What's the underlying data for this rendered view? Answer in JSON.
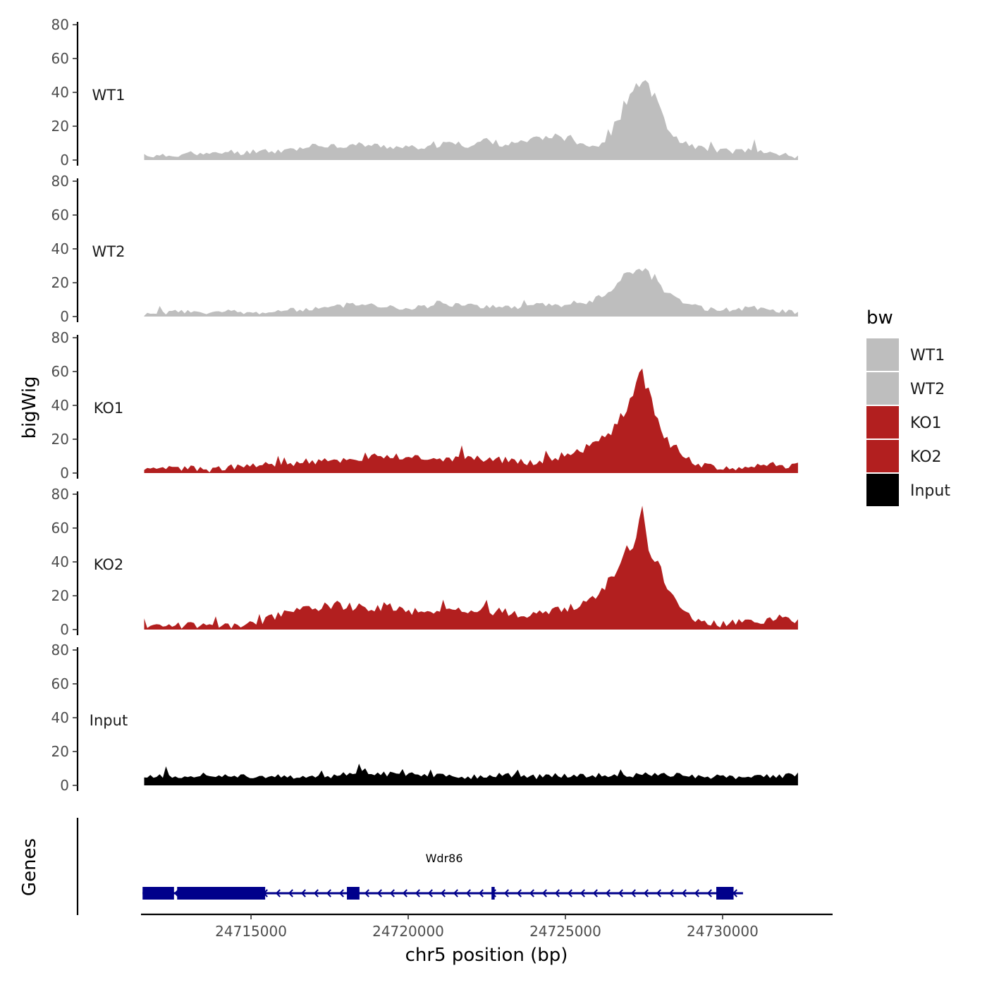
{
  "chart_data": {
    "type": "area",
    "ylabel": "bigWig",
    "genes_label": "Genes",
    "xlabel": "chr5 position (bp)",
    "xlim": [
      24711500,
      24733500
    ],
    "xdata_range": [
      24711600,
      24732400
    ],
    "xticks": [
      24715000,
      24720000,
      24725000,
      24730000
    ],
    "xtick_labels": [
      "24715000",
      "24720000",
      "24725000",
      "24730000"
    ],
    "ylim": [
      0,
      80
    ],
    "yticks": [
      0,
      20,
      40,
      60,
      80
    ],
    "ytick_labels": [
      "0",
      "20",
      "40",
      "60",
      "80"
    ],
    "colors": {
      "WT1": "#bebebe",
      "WT2": "#bebebe",
      "KO1": "#b21f1f",
      "KO2": "#b21f1f",
      "Input": "#000000",
      "gene": "#00008b"
    },
    "tracks": [
      {
        "name": "WT1",
        "color": "#bebebe",
        "anchors": [
          [
            0,
            3
          ],
          [
            0.02,
            2
          ],
          [
            0.05,
            3
          ],
          [
            0.08,
            4
          ],
          [
            0.1,
            3
          ],
          [
            0.13,
            5
          ],
          [
            0.15,
            4
          ],
          [
            0.18,
            6
          ],
          [
            0.2,
            5
          ],
          [
            0.24,
            7
          ],
          [
            0.28,
            9
          ],
          [
            0.3,
            8
          ],
          [
            0.33,
            9
          ],
          [
            0.37,
            8
          ],
          [
            0.4,
            7
          ],
          [
            0.44,
            8
          ],
          [
            0.47,
            10
          ],
          [
            0.5,
            8
          ],
          [
            0.52,
            12
          ],
          [
            0.55,
            9
          ],
          [
            0.58,
            10
          ],
          [
            0.62,
            14
          ],
          [
            0.65,
            12
          ],
          [
            0.68,
            9
          ],
          [
            0.69,
            8
          ],
          [
            0.7,
            10
          ],
          [
            0.71,
            13
          ],
          [
            0.72,
            18
          ],
          [
            0.73,
            26
          ],
          [
            0.74,
            35
          ],
          [
            0.75,
            42
          ],
          [
            0.755,
            48
          ],
          [
            0.76,
            44
          ],
          [
            0.765,
            50
          ],
          [
            0.77,
            46
          ],
          [
            0.775,
            40
          ],
          [
            0.78,
            38
          ],
          [
            0.785,
            33
          ],
          [
            0.79,
            28
          ],
          [
            0.8,
            20
          ],
          [
            0.81,
            15
          ],
          [
            0.82,
            11
          ],
          [
            0.84,
            8
          ],
          [
            0.87,
            6
          ],
          [
            0.9,
            5
          ],
          [
            0.93,
            6
          ],
          [
            0.96,
            4
          ],
          [
            1,
            2
          ]
        ],
        "seed": 11,
        "noise": 2.6
      },
      {
        "name": "WT2",
        "color": "#bebebe",
        "anchors": [
          [
            0,
            1
          ],
          [
            0.03,
            2
          ],
          [
            0.06,
            3
          ],
          [
            0.1,
            2
          ],
          [
            0.13,
            3
          ],
          [
            0.17,
            2
          ],
          [
            0.2,
            3
          ],
          [
            0.24,
            4
          ],
          [
            0.28,
            5
          ],
          [
            0.3,
            6
          ],
          [
            0.33,
            7
          ],
          [
            0.37,
            6
          ],
          [
            0.4,
            5
          ],
          [
            0.44,
            6
          ],
          [
            0.48,
            7
          ],
          [
            0.52,
            6
          ],
          [
            0.55,
            5
          ],
          [
            0.58,
            6
          ],
          [
            0.62,
            7
          ],
          [
            0.65,
            6
          ],
          [
            0.68,
            8
          ],
          [
            0.7,
            12
          ],
          [
            0.72,
            18
          ],
          [
            0.73,
            24
          ],
          [
            0.74,
            27
          ],
          [
            0.75,
            25
          ],
          [
            0.76,
            29
          ],
          [
            0.77,
            26
          ],
          [
            0.78,
            22
          ],
          [
            0.79,
            18
          ],
          [
            0.8,
            14
          ],
          [
            0.82,
            10
          ],
          [
            0.84,
            6
          ],
          [
            0.87,
            4
          ],
          [
            0.9,
            4
          ],
          [
            0.93,
            5
          ],
          [
            0.96,
            4
          ],
          [
            1,
            2
          ]
        ],
        "seed": 23,
        "noise": 2.4
      },
      {
        "name": "KO1",
        "color": "#b21f1f",
        "anchors": [
          [
            0,
            1
          ],
          [
            0.03,
            2
          ],
          [
            0.06,
            3
          ],
          [
            0.1,
            2
          ],
          [
            0.13,
            3
          ],
          [
            0.17,
            4
          ],
          [
            0.2,
            5
          ],
          [
            0.24,
            6
          ],
          [
            0.28,
            7
          ],
          [
            0.31,
            8
          ],
          [
            0.35,
            9
          ],
          [
            0.38,
            10
          ],
          [
            0.42,
            9
          ],
          [
            0.46,
            8
          ],
          [
            0.5,
            9
          ],
          [
            0.54,
            8
          ],
          [
            0.58,
            6
          ],
          [
            0.61,
            7
          ],
          [
            0.63,
            9
          ],
          [
            0.65,
            12
          ],
          [
            0.68,
            15
          ],
          [
            0.7,
            20
          ],
          [
            0.72,
            27
          ],
          [
            0.73,
            33
          ],
          [
            0.74,
            38
          ],
          [
            0.75,
            45
          ],
          [
            0.755,
            55
          ],
          [
            0.76,
            64
          ],
          [
            0.765,
            58
          ],
          [
            0.77,
            47
          ],
          [
            0.775,
            42
          ],
          [
            0.78,
            36
          ],
          [
            0.79,
            27
          ],
          [
            0.8,
            19
          ],
          [
            0.82,
            12
          ],
          [
            0.84,
            6
          ],
          [
            0.87,
            3
          ],
          [
            0.9,
            2
          ],
          [
            0.93,
            4
          ],
          [
            0.96,
            5
          ],
          [
            1,
            4
          ]
        ],
        "seed": 37,
        "noise": 3.4
      },
      {
        "name": "KO2",
        "color": "#b21f1f",
        "anchors": [
          [
            0,
            2
          ],
          [
            0.03,
            3
          ],
          [
            0.06,
            2
          ],
          [
            0.1,
            3
          ],
          [
            0.13,
            2
          ],
          [
            0.17,
            3
          ],
          [
            0.19,
            6
          ],
          [
            0.22,
            10
          ],
          [
            0.25,
            12
          ],
          [
            0.28,
            14
          ],
          [
            0.32,
            13
          ],
          [
            0.36,
            12
          ],
          [
            0.4,
            11
          ],
          [
            0.44,
            10
          ],
          [
            0.48,
            12
          ],
          [
            0.52,
            11
          ],
          [
            0.55,
            10
          ],
          [
            0.58,
            9
          ],
          [
            0.62,
            10
          ],
          [
            0.66,
            13
          ],
          [
            0.69,
            18
          ],
          [
            0.71,
            28
          ],
          [
            0.73,
            38
          ],
          [
            0.74,
            46
          ],
          [
            0.75,
            52
          ],
          [
            0.755,
            60
          ],
          [
            0.76,
            68
          ],
          [
            0.765,
            60
          ],
          [
            0.77,
            50
          ],
          [
            0.78,
            42
          ],
          [
            0.79,
            34
          ],
          [
            0.8,
            26
          ],
          [
            0.81,
            18
          ],
          [
            0.83,
            10
          ],
          [
            0.85,
            4
          ],
          [
            0.88,
            3
          ],
          [
            0.91,
            4
          ],
          [
            0.94,
            5
          ],
          [
            0.97,
            6
          ],
          [
            1,
            5
          ]
        ],
        "seed": 53,
        "noise": 3.6
      },
      {
        "name": "Input",
        "color": "#000000",
        "anchors": [
          [
            0,
            6
          ],
          [
            0.05,
            5
          ],
          [
            0.1,
            6
          ],
          [
            0.15,
            5
          ],
          [
            0.2,
            5
          ],
          [
            0.25,
            4
          ],
          [
            0.3,
            6
          ],
          [
            0.33,
            9
          ],
          [
            0.36,
            7
          ],
          [
            0.4,
            6
          ],
          [
            0.45,
            6
          ],
          [
            0.5,
            5
          ],
          [
            0.55,
            6
          ],
          [
            0.6,
            5
          ],
          [
            0.65,
            6
          ],
          [
            0.7,
            6
          ],
          [
            0.75,
            6
          ],
          [
            0.8,
            6
          ],
          [
            0.85,
            5
          ],
          [
            0.9,
            5
          ],
          [
            0.95,
            5
          ],
          [
            1,
            6
          ]
        ],
        "seed": 71,
        "noise": 2.6
      }
    ],
    "gene": {
      "name": "Wdr86",
      "strand": "-",
      "start": 24711550,
      "end": 24730650,
      "exons": [
        [
          24711550,
          24712550
        ],
        [
          24712650,
          24715450
        ],
        [
          24718050,
          24718450
        ],
        [
          24722650,
          24722750
        ],
        [
          24729800,
          24730350
        ]
      ]
    },
    "legend": {
      "title": "bw",
      "position": "right",
      "entries": [
        {
          "label": "WT1",
          "color": "#bebebe"
        },
        {
          "label": "WT2",
          "color": "#bebebe"
        },
        {
          "label": "KO1",
          "color": "#b21f1f"
        },
        {
          "label": "KO2",
          "color": "#b21f1f"
        },
        {
          "label": "Input",
          "color": "#000000"
        }
      ]
    }
  }
}
